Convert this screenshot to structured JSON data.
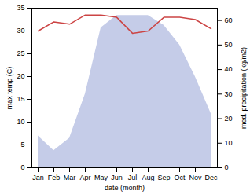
{
  "chart_data": {
    "type": "line",
    "xlabel": "date (month)",
    "ylabel": "max temp (C)",
    "y2label": "med. precipitation (kg/m2)",
    "categories": [
      "Jan",
      "Feb",
      "Mar",
      "Apr",
      "May",
      "Jun",
      "Jul",
      "Aug",
      "Sep",
      "Oct",
      "Nov",
      "Dec"
    ],
    "series": [
      {
        "type": "area",
        "axis": "y2",
        "color": "#c5cce8",
        "values": [
          13.0,
          7.0,
          12.0,
          30.0,
          57.0,
          62.0,
          62.0,
          62.0,
          58.0,
          50.0,
          37.0,
          22.0
        ]
      },
      {
        "type": "line",
        "color": "#cc4444",
        "values": [
          30.0,
          32.0,
          31.5,
          33.5,
          33.5,
          33.0,
          29.5,
          30.0,
          33.0,
          33.0,
          32.5,
          30.5
        ]
      }
    ],
    "ylim": [
      0,
      35
    ],
    "yticks": [
      0,
      5,
      10,
      15,
      20,
      25,
      30,
      35
    ],
    "y2lim": [
      0,
      65
    ],
    "y2ticks": [
      0,
      10,
      20,
      30,
      40,
      50,
      60
    ]
  }
}
